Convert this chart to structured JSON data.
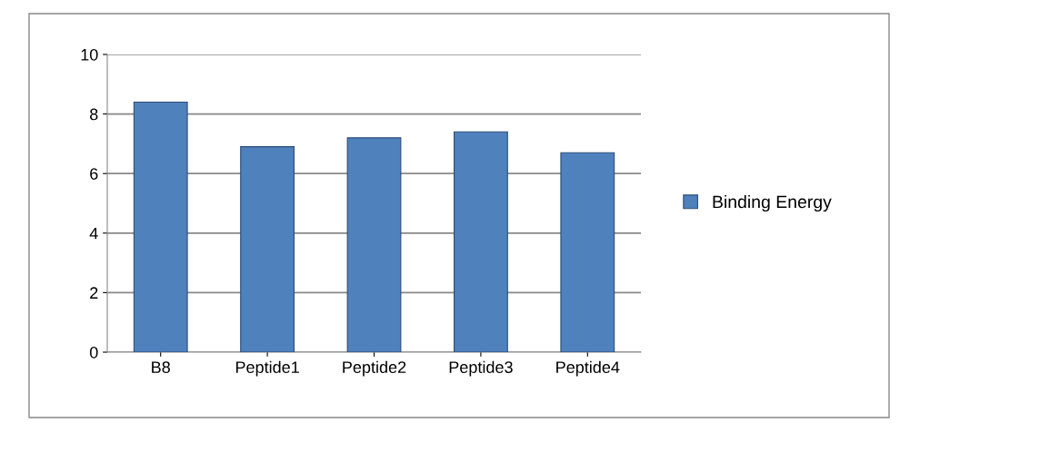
{
  "chart_data": {
    "type": "bar",
    "categories": [
      "B8",
      "Peptide1",
      "Peptide2",
      "Peptide3",
      "Peptide4"
    ],
    "series": [
      {
        "name": "Binding Energy",
        "color": "#4f81bd",
        "values": [
          8.4,
          6.9,
          7.2,
          7.4,
          6.7
        ]
      }
    ],
    "ylim": [
      0,
      10
    ],
    "yticks": [
      0,
      2,
      4,
      6,
      8,
      10
    ],
    "grid": "y",
    "legend": "right"
  }
}
